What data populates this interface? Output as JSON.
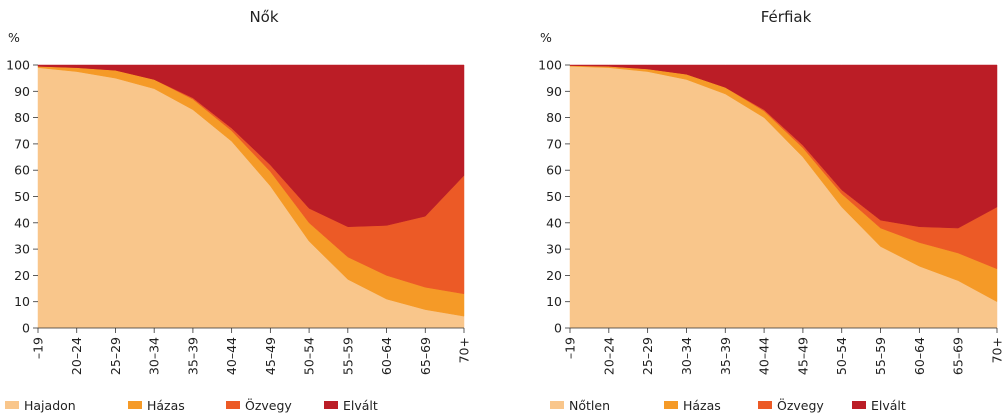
{
  "chart_data": [
    {
      "type": "area",
      "stacked": true,
      "title": "Nők",
      "ylabel": "%",
      "ylim": [
        0,
        100
      ],
      "yticks": [
        0,
        10,
        20,
        30,
        40,
        50,
        60,
        70,
        80,
        90,
        100
      ],
      "grid": false,
      "legend": "bottom",
      "categories": [
        "–19",
        "20–24",
        "25–29",
        "30–34",
        "35–39",
        "40–44",
        "45–49",
        "50–54",
        "55–59",
        "60–64",
        "65–69",
        "70+"
      ],
      "series": [
        {
          "name": "Hajadon",
          "color": "#f9c68b",
          "values": [
            99,
            97.5,
            95,
            91,
            83,
            71,
            54,
            33,
            18.5,
            11,
            7,
            4.5
          ]
        },
        {
          "name": "Házas",
          "color": "#f59a27",
          "values": [
            0.5,
            1.5,
            3,
            3.5,
            4,
            4,
            5.5,
            7,
            8.5,
            9,
            8.5,
            8.5
          ]
        },
        {
          "name": "Özvegy",
          "color": "#ec5a26",
          "values": [
            0,
            0,
            0,
            0,
            0.5,
            1,
            2.5,
            5.5,
            11.5,
            19,
            27,
            45
          ]
        },
        {
          "name": "Elvált",
          "color": "#bb1d26",
          "values": [
            0.5,
            1,
            2,
            5.5,
            12.5,
            24,
            38,
            54.5,
            61.5,
            61,
            57.5,
            42
          ]
        }
      ]
    },
    {
      "type": "area",
      "stacked": true,
      "title": "Férfiak",
      "ylabel": "%",
      "ylim": [
        0,
        100
      ],
      "yticks": [
        0,
        10,
        20,
        30,
        40,
        50,
        60,
        70,
        80,
        90,
        100
      ],
      "grid": false,
      "legend": "bottom",
      "categories": [
        "–19",
        "20–24",
        "25–29",
        "30–34",
        "35–39",
        "40–44",
        "45–49",
        "50–54",
        "55–59",
        "60–64",
        "65–69",
        "70+"
      ],
      "series": [
        {
          "name": "Nőtlen",
          "color": "#f9c68b",
          "values": [
            99.5,
            99,
            97.5,
            94.5,
            89,
            80,
            65,
            46,
            31,
            23.5,
            18,
            10
          ]
        },
        {
          "name": "Házas",
          "color": "#f59a27",
          "values": [
            0.3,
            0.5,
            1,
            2,
            2.5,
            2.5,
            3.5,
            5,
            7,
            9,
            10.5,
            12.5
          ]
        },
        {
          "name": "Özvegy",
          "color": "#ec5a26",
          "values": [
            0,
            0,
            0,
            0,
            0,
            0.5,
            1,
            1.5,
            3,
            6,
            9.5,
            23.5
          ]
        },
        {
          "name": "Elvált",
          "color": "#bb1d26",
          "values": [
            0.2,
            0.5,
            1.5,
            3.5,
            8.5,
            17,
            30.5,
            47.5,
            59,
            61.5,
            62,
            54
          ]
        }
      ]
    }
  ]
}
